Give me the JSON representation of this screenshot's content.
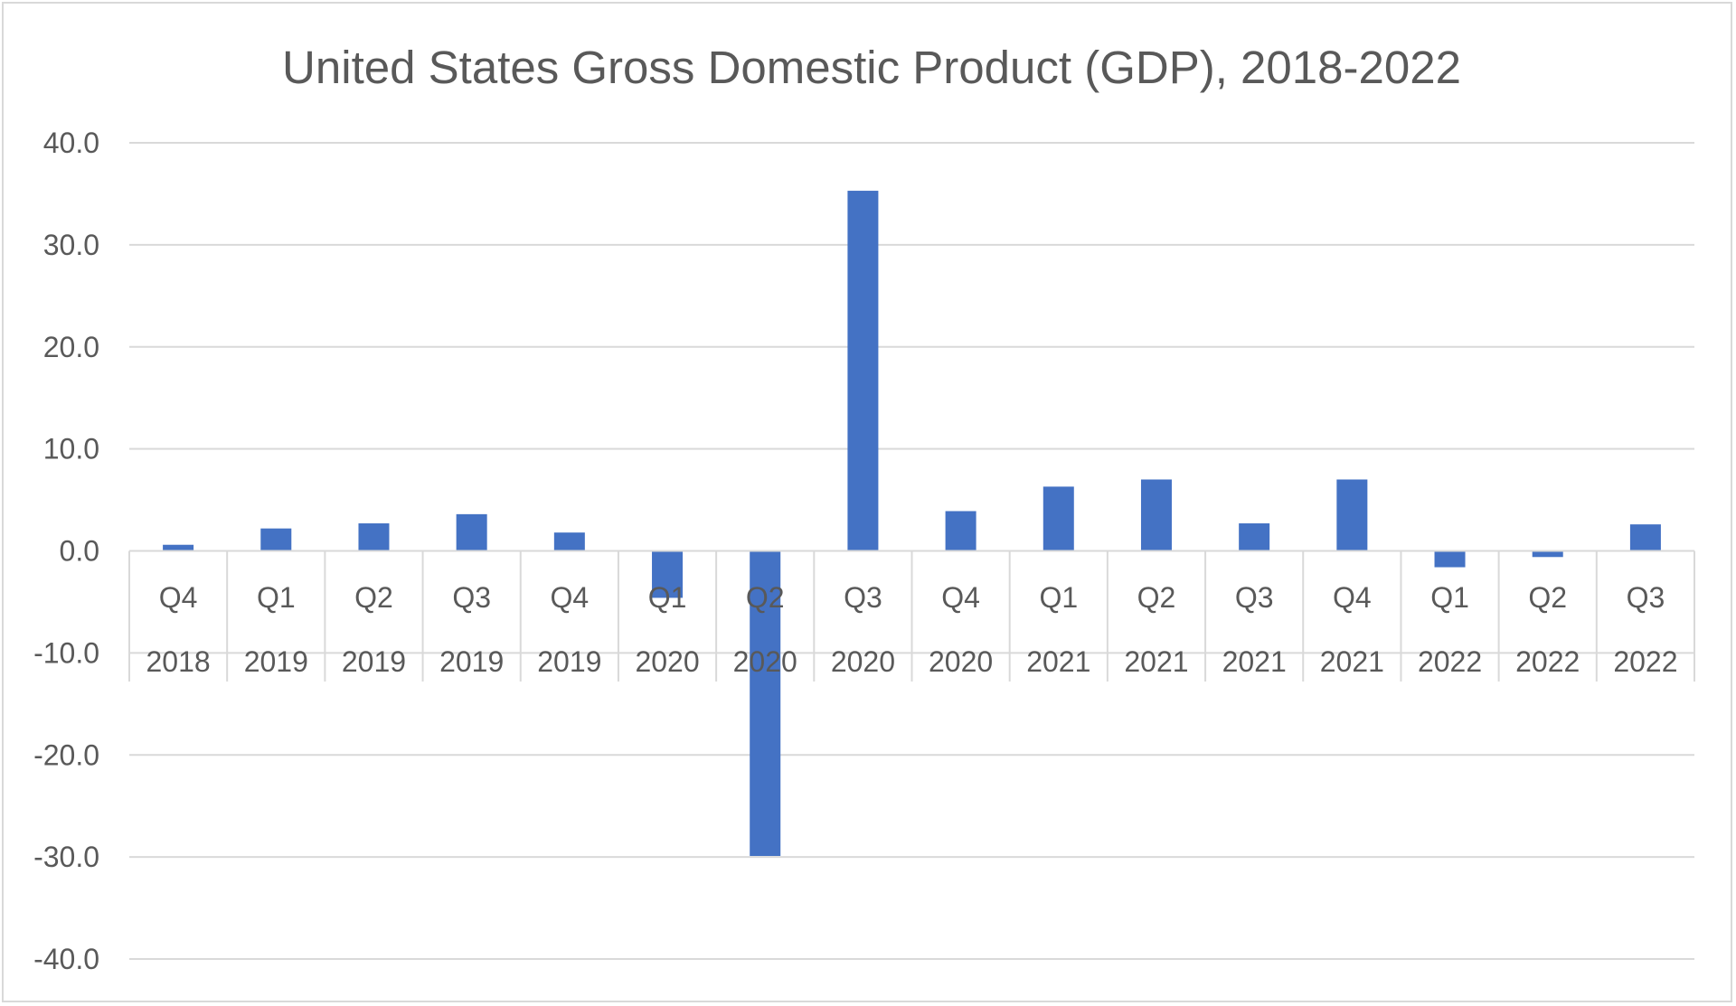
{
  "chart_data": {
    "type": "bar",
    "title": "United States Gross Domestic Product (GDP), 2018-2022",
    "xlabel": "",
    "ylabel": "",
    "ylim": [
      -40,
      40
    ],
    "yticks": [
      "40.0",
      "30.0",
      "20.0",
      "10.0",
      "0.0",
      "-10.0",
      "-20.0",
      "-30.0",
      "-40.0"
    ],
    "ytick_values": [
      40,
      30,
      20,
      10,
      0,
      -10,
      -20,
      -30,
      -40
    ],
    "categories": [
      {
        "quarter": "Q4",
        "year": "2018"
      },
      {
        "quarter": "Q1",
        "year": "2019"
      },
      {
        "quarter": "Q2",
        "year": "2019"
      },
      {
        "quarter": "Q3",
        "year": "2019"
      },
      {
        "quarter": "Q4",
        "year": "2019"
      },
      {
        "quarter": "Q1",
        "year": "2020"
      },
      {
        "quarter": "Q2",
        "year": "2020"
      },
      {
        "quarter": "Q3",
        "year": "2020"
      },
      {
        "quarter": "Q4",
        "year": "2020"
      },
      {
        "quarter": "Q1",
        "year": "2021"
      },
      {
        "quarter": "Q2",
        "year": "2021"
      },
      {
        "quarter": "Q3",
        "year": "2021"
      },
      {
        "quarter": "Q4",
        "year": "2021"
      },
      {
        "quarter": "Q1",
        "year": "2022"
      },
      {
        "quarter": "Q2",
        "year": "2022"
      },
      {
        "quarter": "Q3",
        "year": "2022"
      }
    ],
    "values": [
      0.6,
      2.2,
      2.7,
      3.6,
      1.8,
      -4.6,
      -29.9,
      35.3,
      3.9,
      6.3,
      7.0,
      2.7,
      7.0,
      -1.6,
      -0.6,
      2.6
    ],
    "bar_color": "#4472c4",
    "gridline_color": "#d9d9d9",
    "grid": true,
    "legend": "none"
  }
}
